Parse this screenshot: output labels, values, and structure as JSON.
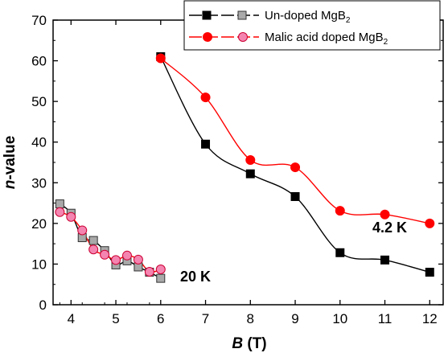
{
  "chart_data": {
    "type": "line",
    "xlabel": {
      "main": "B",
      "unit": " (T)"
    },
    "ylabel": {
      "main": "n",
      "unit": "-value"
    },
    "xlim": [
      3.6,
      12.3
    ],
    "ylim": [
      0,
      70
    ],
    "x_ticks": [
      "4",
      "5",
      "6",
      "7",
      "8",
      "9",
      "10",
      "11",
      "12"
    ],
    "y_ticks": [
      "0",
      "10",
      "20",
      "30",
      "40",
      "50",
      "60",
      "70"
    ],
    "legend": {
      "placement": "top-right",
      "entries": [
        {
          "base": "Un-doped MgB",
          "sub": "2"
        },
        {
          "base": "Malic acid doped MgB",
          "sub": "2"
        }
      ]
    },
    "annotations": [
      {
        "text": "4.2 K"
      },
      {
        "text": "20 K"
      }
    ],
    "series": [
      {
        "name": "Un-doped MgB2",
        "temperature": "4.2 K",
        "marker": "filled-square",
        "color": "#000000",
        "x": [
          6,
          7,
          8,
          9,
          10,
          11,
          12
        ],
        "y": [
          61.0,
          39.5,
          32.2,
          26.6,
          12.8,
          11.0,
          8.0
        ]
      },
      {
        "name": "Malic acid doped MgB2",
        "temperature": "4.2 K",
        "marker": "filled-circle",
        "color": "#ff0000",
        "x": [
          6,
          7,
          8,
          9,
          10,
          11,
          12
        ],
        "y": [
          60.6,
          51.0,
          35.6,
          33.8,
          23.1,
          22.2,
          20.0
        ]
      },
      {
        "name": "Un-doped MgB2",
        "temperature": "20 K",
        "marker": "gray-square",
        "color": "#000000",
        "x": [
          3.75,
          4.0,
          4.25,
          4.5,
          4.75,
          5.0,
          5.25,
          5.5,
          5.75,
          6.0
        ],
        "y": [
          24.8,
          22.5,
          16.5,
          15.8,
          13.3,
          9.8,
          10.8,
          9.3,
          8.0,
          6.5
        ]
      },
      {
        "name": "Malic acid doped MgB2",
        "temperature": "20 K",
        "marker": "pink-circle",
        "color": "#ff0000",
        "x": [
          3.75,
          4.0,
          4.25,
          4.5,
          4.75,
          5.0,
          5.25,
          5.5,
          5.75,
          6.0
        ],
        "y": [
          22.8,
          21.6,
          18.3,
          13.6,
          12.3,
          11.0,
          12.1,
          11.1,
          8.1,
          8.7
        ]
      }
    ],
    "grid": false
  }
}
